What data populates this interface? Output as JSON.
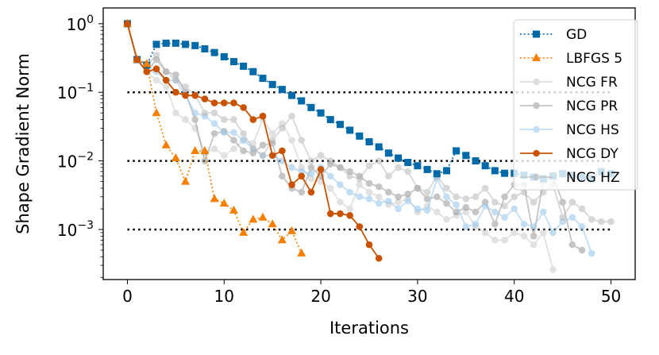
{
  "chart_data": {
    "type": "line",
    "xlabel": "Iterations",
    "ylabel": "Shape Gradient Norm",
    "xlim": [
      -2.5,
      52.5
    ],
    "ylim_log10": [
      -3.73,
      0.23
    ],
    "yscale": "log",
    "x_ticks": [
      "0",
      "10",
      "20",
      "30",
      "40",
      "50"
    ],
    "y_ticks": [
      {
        "exp": "0"
      },
      {
        "exp": "−1"
      },
      {
        "exp": "−2"
      },
      {
        "exp": "−3"
      }
    ],
    "reference_lines": [
      0.1,
      0.01,
      0.001
    ],
    "legend_position": "upper-right",
    "series": [
      {
        "name": "GD",
        "color": "#0069a8",
        "marker": "square",
        "line": "dotted",
        "alpha": 1,
        "values": [
          1,
          0.3,
          0.25,
          0.5,
          0.52,
          0.52,
          0.5,
          0.48,
          0.43,
          0.38,
          0.33,
          0.28,
          0.24,
          0.2,
          0.16,
          0.13,
          0.11,
          0.09,
          0.075,
          0.06,
          0.05,
          0.04,
          0.034,
          0.028,
          0.023,
          0.019,
          0.016,
          0.013,
          0.011,
          0.0095,
          0.0085,
          0.0075,
          0.0065,
          0.0072,
          0.014,
          0.012,
          0.01,
          0.0085,
          0.0072,
          0.0066,
          0.0066,
          0.0062,
          0.0058,
          0.0055,
          0.006,
          0.0065,
          0.0062,
          0.0058,
          0.0055,
          0.007,
          0.0065
        ]
      },
      {
        "name": "LBFGS 5",
        "color": "#f77f00",
        "marker": "triangle",
        "line": "dotted",
        "alpha": 1,
        "values": [
          1,
          0.3,
          0.26,
          0.05,
          0.017,
          0.011,
          0.005,
          0.014,
          0.014,
          0.0028,
          0.0024,
          0.0019,
          0.0009,
          0.0014,
          0.0015,
          0.0012,
          0.0007,
          0.00095,
          0.00045
        ]
      },
      {
        "name": "NCG FR",
        "color": "#bdbdbd",
        "marker": "circle",
        "line": "solid",
        "alpha": 0.45,
        "values": [
          1,
          0.3,
          0.2,
          0.15,
          0.12,
          0.05,
          0.04,
          0.03,
          0.013,
          0.015,
          0.012,
          0.015,
          0.02,
          0.018,
          0.04,
          0.025,
          0.035,
          0.02,
          0.008,
          0.0055,
          0.005,
          0.004,
          0.0025,
          0.002,
          0.0045,
          0.0035,
          0.003,
          0.0023,
          0.0025,
          0.0028,
          0.0018,
          0.0022,
          0.0018,
          0.0014,
          0.0016,
          0.0018,
          0.0011,
          0.0009,
          0.0007,
          0.0007,
          0.0009,
          0.0008,
          0.0006,
          0.0009,
          0.00026
        ]
      },
      {
        "name": "NCG PR",
        "color": "#8c8c8c",
        "marker": "circle",
        "line": "solid",
        "alpha": 0.5,
        "values": [
          1,
          0.3,
          0.2,
          0.3,
          0.2,
          0.18,
          0.1,
          0.04,
          0.01,
          0.025,
          0.027,
          0.02,
          0.014,
          0.013,
          0.017,
          0.018,
          0.006,
          0.004,
          0.0035,
          0.008,
          0.006,
          0.009,
          0.008,
          0.007,
          0.006,
          0.0047,
          0.0042,
          0.0035,
          0.003,
          0.0033,
          0.004,
          0.0028,
          0.003,
          0.0024,
          0.0018,
          0.0021,
          0.0018,
          0.0025,
          0.0012,
          0.003,
          0.0045,
          0.0045,
          0.0008,
          0.005,
          0.006,
          0.0025,
          0.0006,
          0.0005
        ]
      },
      {
        "name": "NCG HS",
        "color": "#9cc7ea",
        "marker": "circle",
        "line": "solid",
        "alpha": 0.6,
        "values": [
          1,
          0.3,
          0.2,
          0.2,
          0.15,
          0.15,
          0.09,
          0.05,
          0.045,
          0.035,
          0.026,
          0.026,
          0.02,
          0.015,
          0.012,
          0.012,
          0.01,
          0.008,
          0.007,
          0.0065,
          0.008,
          0.006,
          0.0045,
          0.0035,
          0.003,
          0.0028,
          0.0024,
          0.0026,
          0.002,
          0.0026,
          0.002,
          0.0019,
          0.0055,
          0.003,
          0.0023,
          0.0011,
          0.0012,
          0.0022,
          0.0018,
          0.0015,
          0.002,
          0.0012,
          0.0011,
          0.0018,
          0.0009,
          0.0013,
          0.0015,
          0.0011,
          0.00045
        ]
      },
      {
        "name": "NCG DY",
        "color": "#c85200",
        "marker": "circle",
        "line": "solid",
        "alpha": 1,
        "values": [
          1,
          0.3,
          0.2,
          0.22,
          0.15,
          0.1,
          0.09,
          0.09,
          0.08,
          0.07,
          0.07,
          0.07,
          0.06,
          0.04,
          0.045,
          0.012,
          0.014,
          0.0045,
          0.006,
          0.0035,
          0.0075,
          0.0017,
          0.0017,
          0.0016,
          0.0011,
          0.0006,
          0.00038
        ]
      },
      {
        "name": "NCG HZ",
        "color": "#b0b0b0",
        "marker": "circle",
        "line": "solid",
        "alpha": 0.5,
        "values": [
          1,
          0.3,
          0.25,
          0.35,
          0.2,
          0.15,
          0.12,
          0.09,
          0.05,
          0.05,
          0.04,
          0.04,
          0.025,
          0.015,
          0.012,
          0.02,
          0.03,
          0.045,
          0.02,
          0.01,
          0.012,
          0.01,
          0.008,
          0.006,
          0.0055,
          0.0085,
          0.01,
          0.006,
          0.008,
          0.007,
          0.004,
          0.0035,
          0.006,
          0.004,
          0.003,
          0.0028,
          0.003,
          0.004,
          0.0025,
          0.0022,
          0.003,
          0.0035,
          0.0025,
          0.0035,
          0.0045,
          0.0015,
          0.0025,
          0.002,
          0.0014,
          0.0013,
          0.0013
        ]
      }
    ]
  }
}
